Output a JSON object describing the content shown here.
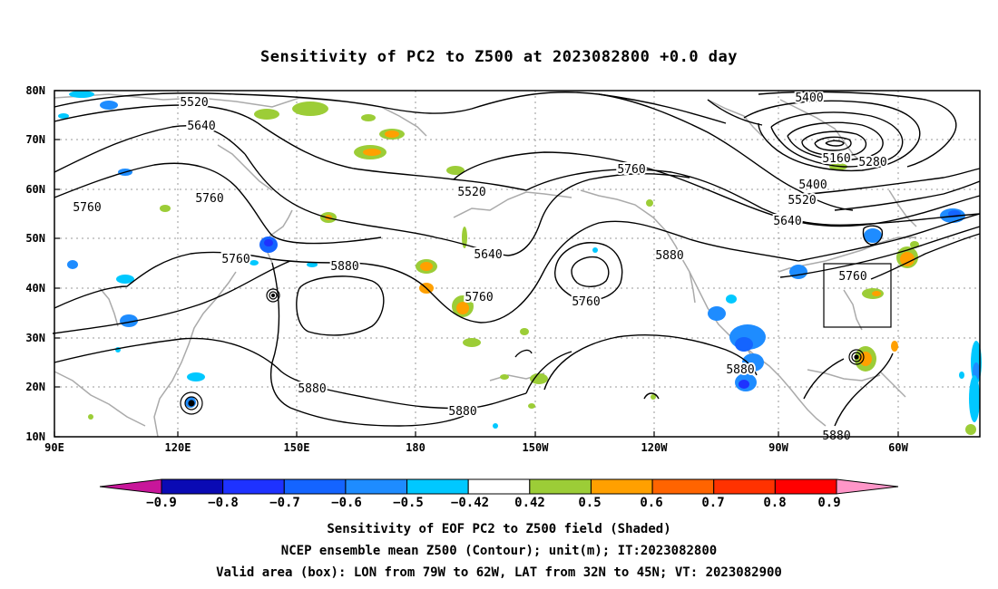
{
  "title": "Sensitivity of PC2 to Z500 at 2023082800 +0.0 day",
  "map": {
    "lat_ticks": [
      "80N",
      "70N",
      "60N",
      "50N",
      "40N",
      "30N",
      "20N",
      "10N"
    ],
    "lon_ticks": [
      "90E",
      "120E",
      "150E",
      "180",
      "150W",
      "120W",
      "90W",
      "60W"
    ],
    "contour_labels": [
      "5520",
      "5640",
      "5760",
      "5760",
      "5400",
      "5160",
      "5280",
      "5400",
      "5520",
      "5640",
      "5760",
      "5520",
      "5640",
      "5760",
      "5880",
      "5760",
      "5760",
      "5880",
      "5760",
      "5880",
      "5880",
      "5880",
      "5880"
    ],
    "colors": {
      "contour": "#000000",
      "coast": "#aaaaaa",
      "grid": "#999999",
      "box": "#000000"
    }
  },
  "colorbar": {
    "labels": [
      "−0.9",
      "−0.8",
      "−0.7",
      "−0.6",
      "−0.5",
      "−0.42",
      "0.42",
      "0.5",
      "0.6",
      "0.7",
      "0.8",
      "0.9"
    ],
    "colors": [
      "#c8169a",
      "#0a0ab4",
      "#1e32ff",
      "#1464ff",
      "#1e8cff",
      "#00c8ff",
      "#ffffff",
      "#9ccd37",
      "#ffa000",
      "#ff6400",
      "#ff3200",
      "#ff0000",
      "#ff96c8"
    ]
  },
  "captions": [
    "Sensitivity of EOF PC2 to Z500 field (Shaded)",
    "NCEP ensemble mean Z500 (Contour); unit(m); IT:2023082800",
    "Valid area (box): LON from 79W to 62W, LAT from 32N to 45N; VT: 2023082900"
  ]
}
